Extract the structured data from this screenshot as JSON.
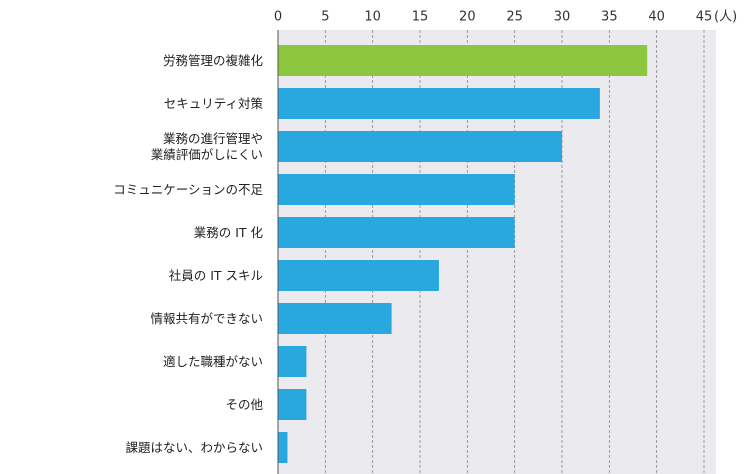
{
  "chart_data": {
    "type": "bar",
    "orientation": "horizontal",
    "categories": [
      "労務管理の複雑化",
      "セキュリティ対策",
      "業務の進行管理や\n業績評価がしにくい",
      "コミュニケーションの不足",
      "業務の IT 化",
      "社員の IT スキル",
      "情報共有ができない",
      "適した職種がない",
      "その他",
      "課題はない、わからない"
    ],
    "values": [
      39,
      34,
      30,
      25,
      25,
      17,
      12,
      3,
      3,
      1
    ],
    "colors": [
      "#8dc63f",
      "#29a8e0",
      "#29a8e0",
      "#29a8e0",
      "#29a8e0",
      "#29a8e0",
      "#29a8e0",
      "#29a8e0",
      "#29a8e0",
      "#29a8e0"
    ],
    "xlim": [
      0,
      45
    ],
    "xticks": [
      0,
      5,
      10,
      15,
      20,
      25,
      30,
      35,
      40,
      45
    ],
    "x_unit": "(人)",
    "grid": true
  }
}
